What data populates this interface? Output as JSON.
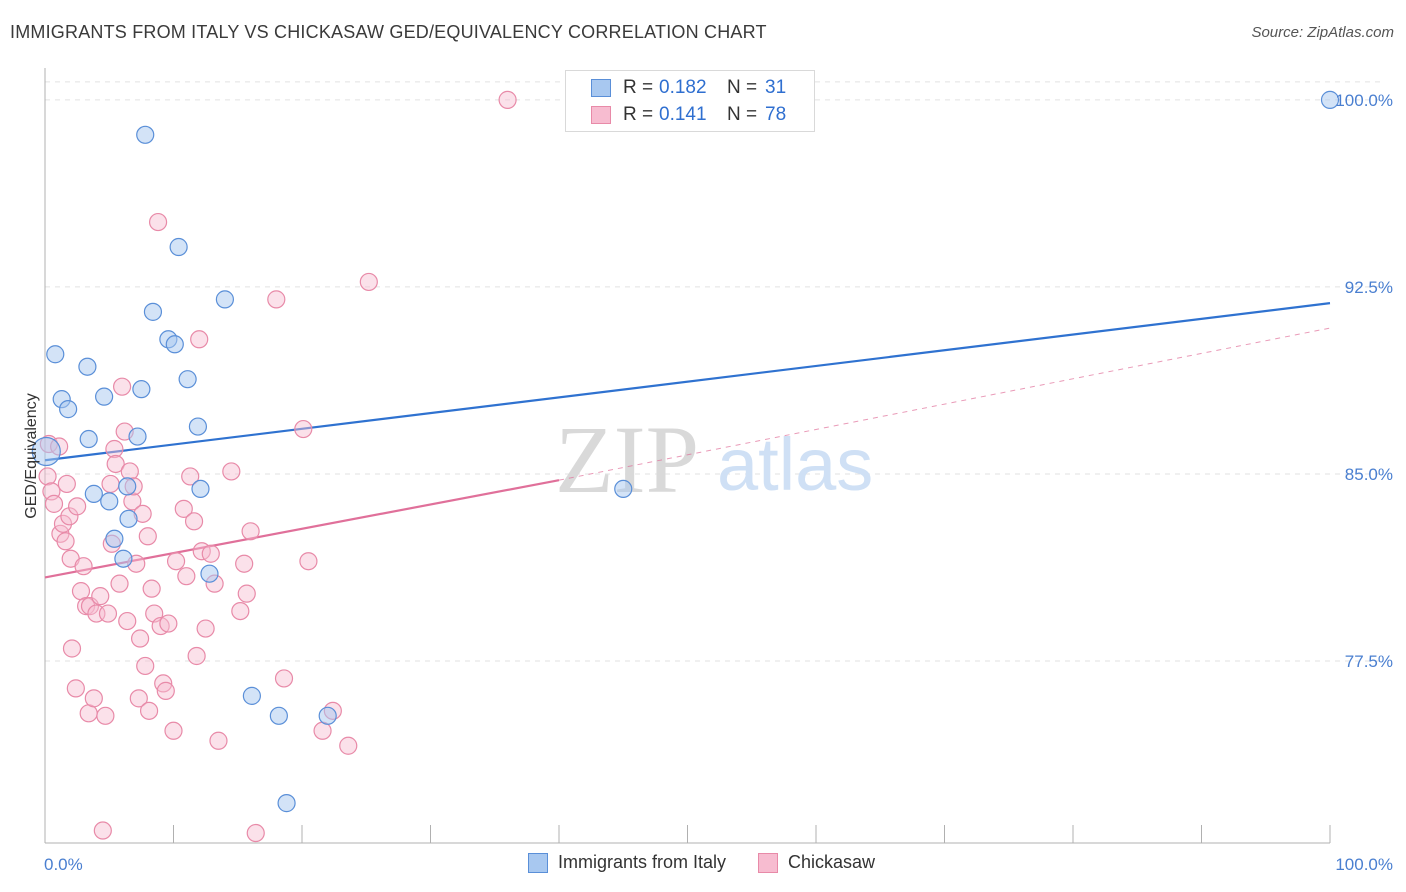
{
  "title": "IMMIGRANTS FROM ITALY VS CHICKASAW GED/EQUIVALENCY CORRELATION CHART",
  "source": "Source: ZipAtlas.com",
  "watermark": {
    "zip": "ZIP",
    "atlas": "atlas"
  },
  "legend": {
    "rows": [
      {
        "r_label": "R =",
        "r_value": "0.182",
        "n_label": "N =",
        "n_value": "31"
      },
      {
        "r_label": "R =",
        "r_value": "0.141",
        "n_label": "N =",
        "n_value": "78"
      }
    ]
  },
  "colors": {
    "italy_fill": "#a8c8f0",
    "italy_stroke": "#5a8fd8",
    "italy_line": "#2f72d0",
    "chickasaw_fill": "#f7bcd0",
    "chickasaw_stroke": "#e88aa8",
    "chickasaw_line": "#e0709a"
  },
  "chart_data": {
    "type": "scatter",
    "title": "IMMIGRANTS FROM ITALY VS CHICKASAW GED/EQUIVALENCY CORRELATION CHART",
    "ylabel": "GED/Equivalency",
    "xlabel": "",
    "xlim": [
      0,
      100
    ],
    "ylim": [
      70.2,
      101.6
    ],
    "x_tick_labels": [
      "0.0%",
      "100.0%"
    ],
    "y_ticks": [
      77.5,
      85.0,
      92.5,
      100.0
    ],
    "y_tick_labels": [
      "77.5%",
      "85.0%",
      "92.5%",
      "100.0%"
    ],
    "grid": true,
    "legend_position": "bottom",
    "series": [
      {
        "name": "Immigrants from Italy",
        "points": [
          [
            0.1,
            85.9
          ],
          [
            0.8,
            89.8
          ],
          [
            1.3,
            88.0
          ],
          [
            1.8,
            87.6
          ],
          [
            3.3,
            89.3
          ],
          [
            3.4,
            86.4
          ],
          [
            3.8,
            84.2
          ],
          [
            4.6,
            88.1
          ],
          [
            5.0,
            83.9
          ],
          [
            5.4,
            82.4
          ],
          [
            6.1,
            81.6
          ],
          [
            6.4,
            84.5
          ],
          [
            6.5,
            83.2
          ],
          [
            7.2,
            86.5
          ],
          [
            7.5,
            88.4
          ],
          [
            7.8,
            98.6
          ],
          [
            8.4,
            91.5
          ],
          [
            9.6,
            90.4
          ],
          [
            10.1,
            90.2
          ],
          [
            10.4,
            94.1
          ],
          [
            11.1,
            88.8
          ],
          [
            11.9,
            86.9
          ],
          [
            12.1,
            84.4
          ],
          [
            12.8,
            81.0
          ],
          [
            14.0,
            92.0
          ],
          [
            16.1,
            76.1
          ],
          [
            18.2,
            75.3
          ],
          [
            18.8,
            71.8
          ],
          [
            22.0,
            75.3
          ],
          [
            45.0,
            84.4
          ],
          [
            100.0,
            100.0
          ]
        ],
        "trend": [
          [
            0,
            85.55
          ],
          [
            100,
            91.85
          ]
        ]
      },
      {
        "name": "Chickasaw",
        "points": [
          [
            0.2,
            84.9
          ],
          [
            0.3,
            86.2
          ],
          [
            0.5,
            84.3
          ],
          [
            0.7,
            83.8
          ],
          [
            1.1,
            86.1
          ],
          [
            1.2,
            82.6
          ],
          [
            1.4,
            83.0
          ],
          [
            1.6,
            82.3
          ],
          [
            1.7,
            84.6
          ],
          [
            1.9,
            83.3
          ],
          [
            2.0,
            81.6
          ],
          [
            2.1,
            78.0
          ],
          [
            2.4,
            76.4
          ],
          [
            2.5,
            83.7
          ],
          [
            2.8,
            80.3
          ],
          [
            3.0,
            81.3
          ],
          [
            3.2,
            79.7
          ],
          [
            3.4,
            75.4
          ],
          [
            3.5,
            79.7
          ],
          [
            3.8,
            76.0
          ],
          [
            4.0,
            79.4
          ],
          [
            4.3,
            80.1
          ],
          [
            4.5,
            70.7
          ],
          [
            4.7,
            75.3
          ],
          [
            4.9,
            79.4
          ],
          [
            5.1,
            84.6
          ],
          [
            5.2,
            82.2
          ],
          [
            5.4,
            86.0
          ],
          [
            5.5,
            85.4
          ],
          [
            5.8,
            80.6
          ],
          [
            6.0,
            88.5
          ],
          [
            6.2,
            86.7
          ],
          [
            6.4,
            79.1
          ],
          [
            6.6,
            85.1
          ],
          [
            6.8,
            83.9
          ],
          [
            6.9,
            84.5
          ],
          [
            7.1,
            81.4
          ],
          [
            7.3,
            76.0
          ],
          [
            7.4,
            78.4
          ],
          [
            7.6,
            83.4
          ],
          [
            7.8,
            77.3
          ],
          [
            8.0,
            82.5
          ],
          [
            8.1,
            75.5
          ],
          [
            8.3,
            80.4
          ],
          [
            8.5,
            79.4
          ],
          [
            8.8,
            95.1
          ],
          [
            9.0,
            78.9
          ],
          [
            9.2,
            76.6
          ],
          [
            9.4,
            76.3
          ],
          [
            9.6,
            79.0
          ],
          [
            10.0,
            74.7
          ],
          [
            10.2,
            81.5
          ],
          [
            10.8,
            83.6
          ],
          [
            11.0,
            80.9
          ],
          [
            11.3,
            84.9
          ],
          [
            11.6,
            83.1
          ],
          [
            11.8,
            77.7
          ],
          [
            12.0,
            90.4
          ],
          [
            12.2,
            81.9
          ],
          [
            12.5,
            78.8
          ],
          [
            12.9,
            81.8
          ],
          [
            13.2,
            80.6
          ],
          [
            13.5,
            74.3
          ],
          [
            14.5,
            85.1
          ],
          [
            15.2,
            79.5
          ],
          [
            15.5,
            81.4
          ],
          [
            15.7,
            80.2
          ],
          [
            16.0,
            82.7
          ],
          [
            16.4,
            70.6
          ],
          [
            18.0,
            92.0
          ],
          [
            18.6,
            76.8
          ],
          [
            20.1,
            86.8
          ],
          [
            20.5,
            81.5
          ],
          [
            21.6,
            74.7
          ],
          [
            22.4,
            75.5
          ],
          [
            23.6,
            74.1
          ],
          [
            25.2,
            92.7
          ],
          [
            36.0,
            100.0
          ]
        ],
        "trend": [
          [
            0,
            80.85
          ],
          [
            40,
            84.75
          ]
        ],
        "trend_extension": [
          [
            40,
            84.75
          ],
          [
            100,
            90.85
          ]
        ]
      }
    ]
  },
  "bottom_legend": [
    {
      "label": "Immigrants from Italy"
    },
    {
      "label": "Chickasaw"
    }
  ]
}
